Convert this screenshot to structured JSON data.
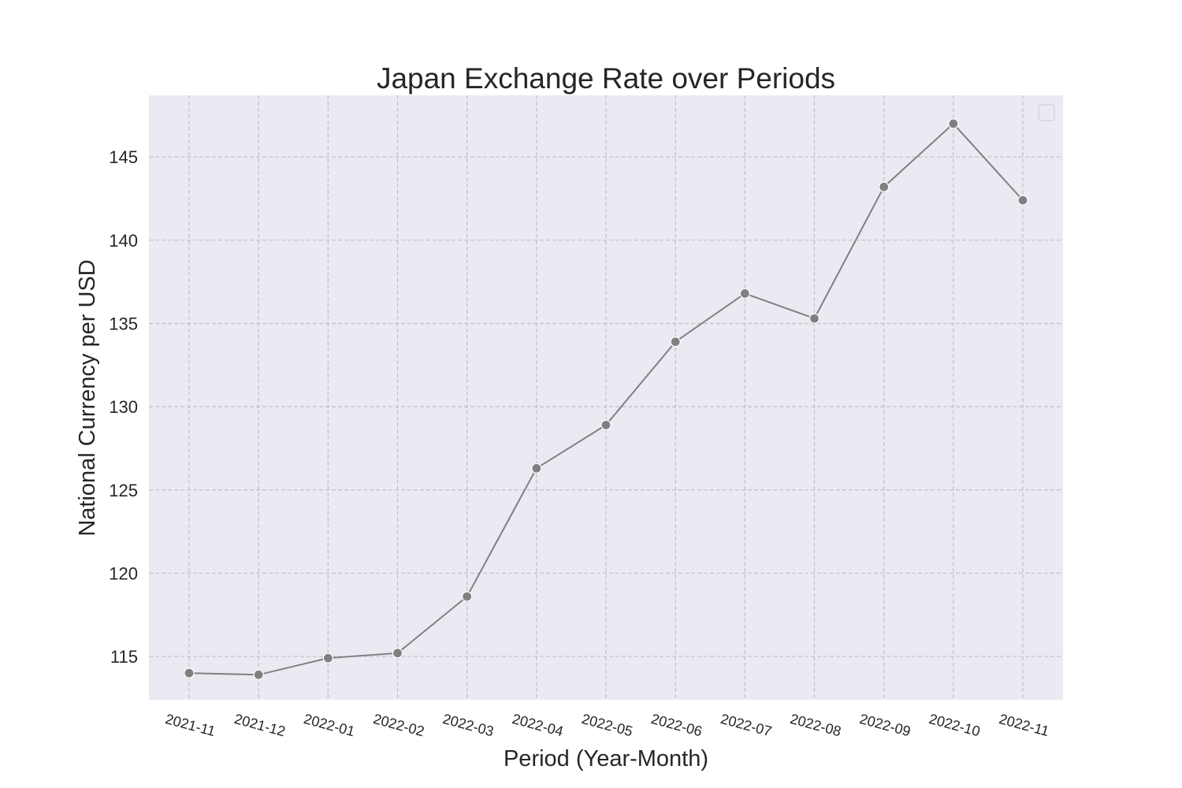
{
  "chart_data": {
    "type": "line",
    "title": "Japan Exchange Rate over Periods",
    "xlabel": "Period (Year-Month)",
    "ylabel": "National Currency per USD",
    "categories": [
      "2021-11",
      "2021-12",
      "2022-01",
      "2022-02",
      "2022-03",
      "2022-04",
      "2022-05",
      "2022-06",
      "2022-07",
      "2022-08",
      "2022-09",
      "2022-10",
      "2022-11"
    ],
    "series": [
      {
        "values": [
          114.0,
          113.9,
          114.9,
          115.2,
          118.6,
          126.3,
          128.9,
          133.9,
          136.8,
          135.3,
          143.2,
          147.0,
          142.4
        ],
        "color": "#808080"
      }
    ],
    "yticks": [
      115,
      120,
      125,
      130,
      135,
      140,
      145
    ],
    "ylim": [
      112.4,
      148.7
    ],
    "grid": true,
    "legend": "top-right (empty)",
    "colors": {
      "background": "#eaeaf2",
      "grid": "#c0c0c4",
      "series": "#808080"
    }
  }
}
